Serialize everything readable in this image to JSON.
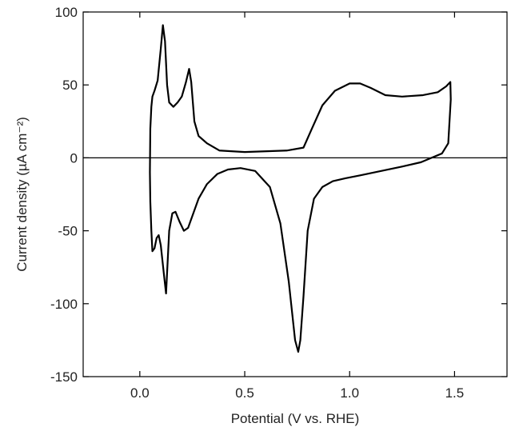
{
  "chart_data": {
    "type": "line",
    "title": "",
    "xlabel": "Potential (V vs. RHE)",
    "ylabel": "Current density (µA cm⁻²)",
    "xlim": [
      -0.27,
      1.75
    ],
    "ylim": [
      -150,
      100
    ],
    "xticks": [
      0.0,
      0.5,
      1.0,
      1.5
    ],
    "xtick_labels": [
      "0.0",
      "0.5",
      "1.0",
      "1.5"
    ],
    "yticks": [
      100,
      50,
      0,
      -50,
      -100,
      -150
    ],
    "ytick_labels": [
      "100",
      "50",
      "0",
      "-50",
      "-100",
      "-150"
    ],
    "grid": false,
    "legend": "none",
    "zero_line": 0,
    "line_color": "#000000",
    "series": [
      {
        "name": "",
        "x": [
          0.05,
          0.055,
          0.06,
          0.07,
          0.085,
          0.1,
          0.11,
          0.12,
          0.13,
          0.14,
          0.16,
          0.18,
          0.2,
          0.22,
          0.235,
          0.245,
          0.26,
          0.28,
          0.32,
          0.38,
          0.5,
          0.7,
          0.78,
          0.82,
          0.87,
          0.93,
          1.0,
          1.05,
          1.1,
          1.17,
          1.25,
          1.35,
          1.42,
          1.46,
          1.48,
          1.482,
          1.47,
          1.44,
          1.39,
          1.34,
          1.25,
          1.15,
          1.05,
          0.98,
          0.92,
          0.87,
          0.83,
          0.8,
          0.78,
          0.765,
          0.755,
          0.74,
          0.71,
          0.67,
          0.62,
          0.55,
          0.48,
          0.42,
          0.37,
          0.32,
          0.28,
          0.25,
          0.23,
          0.21,
          0.19,
          0.17,
          0.155,
          0.14,
          0.125,
          0.115,
          0.1,
          0.09,
          0.08,
          0.07,
          0.06,
          0.055,
          0.05,
          0.048,
          0.05
        ],
        "y": [
          20,
          35,
          42,
          46,
          53,
          75,
          91,
          80,
          50,
          38,
          35,
          38,
          42,
          52,
          61,
          52,
          25,
          15,
          10,
          5,
          4,
          5,
          7,
          20,
          36,
          46,
          51,
          51,
          48,
          43,
          42,
          43,
          45,
          49,
          52,
          40,
          10,
          3,
          0,
          -3,
          -6,
          -9,
          -12,
          -14,
          -16,
          -20,
          -28,
          -50,
          -95,
          -125,
          -133,
          -125,
          -85,
          -45,
          -20,
          -9,
          -7,
          -8,
          -11,
          -18,
          -28,
          -40,
          -48,
          -50,
          -44,
          -37,
          -38,
          -50,
          -93,
          -80,
          -60,
          -53,
          -55,
          -62,
          -64,
          -50,
          -30,
          -10,
          20
        ]
      }
    ]
  }
}
